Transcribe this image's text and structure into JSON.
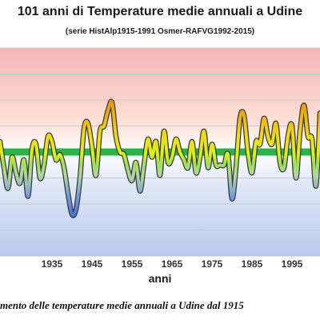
{
  "chart_data": {
    "type": "line",
    "title": "101 anni di Temperature medie annuali a Udine",
    "subtitle": "(serie HistAlp1915-1991 Osmer-RAFVG1992-2015)",
    "xlabel": "anni",
    "ylabel": "",
    "caption": "mento delle temperature medie annuali a Udine dal 1915",
    "x_tick_labels": [
      "1935",
      "1945",
      "1955",
      "1965",
      "1975",
      "1985",
      "1995"
    ],
    "xlim": [
      1922,
      2002
    ],
    "ylim": [
      -4,
      4
    ],
    "mean_line": 0,
    "grid": true,
    "x": [
      1922,
      1923,
      1924,
      1925,
      1926,
      1927,
      1928,
      1929,
      1930,
      1931,
      1932,
      1933,
      1934,
      1935,
      1936,
      1937,
      1938,
      1939,
      1940,
      1941,
      1942,
      1943,
      1944,
      1945,
      1946,
      1947,
      1948,
      1949,
      1950,
      1951,
      1952,
      1953,
      1954,
      1955,
      1956,
      1957,
      1958,
      1959,
      1960,
      1961,
      1962,
      1963,
      1964,
      1965,
      1966,
      1967,
      1968,
      1969,
      1970,
      1971,
      1972,
      1973,
      1974,
      1975,
      1976,
      1977,
      1978,
      1979,
      1980,
      1981,
      1982,
      1983,
      1984,
      1985,
      1986,
      1987,
      1988,
      1989,
      1990,
      1991,
      1992,
      1993,
      1994,
      1995,
      1996,
      1997,
      1998,
      1999,
      2000,
      2001,
      2002
    ],
    "values": [
      0.4,
      -0.6,
      -1.4,
      -0.2,
      -0.8,
      -1.2,
      -0.3,
      -1.7,
      0.1,
      0.3,
      -1.0,
      -0.5,
      0.6,
      0.4,
      -0.3,
      -0.1,
      -0.6,
      -1.6,
      -2.4,
      -2.2,
      -1.0,
      0.9,
      1.1,
      0.2,
      -0.9,
      0.8,
      1.0,
      1.6,
      1.9,
      0.6,
      0.0,
      -0.1,
      -0.7,
      -1.1,
      -0.4,
      -1.5,
      -0.5,
      0.5,
      -0.2,
      0.4,
      -0.9,
      0.8,
      -0.4,
      -0.2,
      0.5,
      0.0,
      -0.3,
      -0.6,
      0.4,
      -0.8,
      -0.2,
      0.8,
      -0.6,
      0.3,
      -0.5,
      -0.5,
      -0.5,
      -0.1,
      -1.8,
      -0.6,
      1.3,
      1.4,
      0.0,
      -0.8,
      0.4,
      0.3,
      1.3,
      0.6,
      0.3,
      1.1,
      -0.4,
      -0.6,
      0.6,
      1.0,
      -1.0,
      0.8,
      1.8,
      0.6,
      0.5,
      -1.3,
      1.5
    ]
  }
}
